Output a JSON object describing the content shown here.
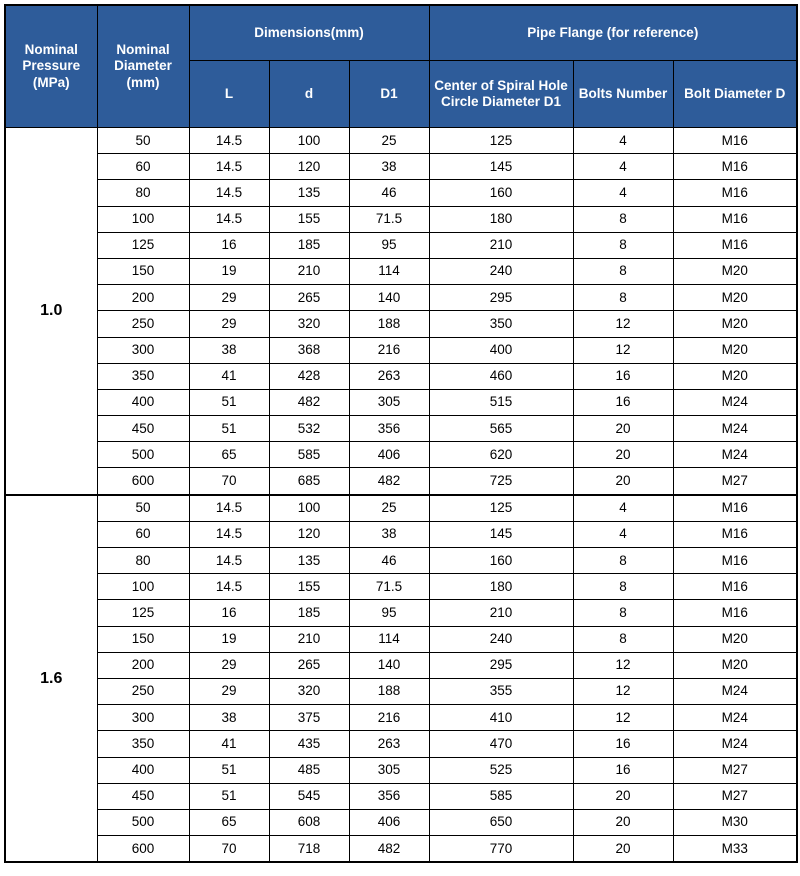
{
  "header": {
    "nominal_pressure": "Nominal Pressure (MPa)",
    "nominal_diameter": "Nominal Diameter (mm)",
    "dimensions": "Dimensions(mm)",
    "flange": "Pipe Flange (for reference)",
    "L": "L",
    "d": "d",
    "D1": "D1",
    "spiral": "Center of Spiral Hole Circle Diameter D1",
    "bolts_num": "Bolts Number",
    "bolt_dia": "Bolt Diameter D"
  },
  "groups": [
    {
      "pressure": "1.0",
      "rows": [
        {
          "nd": "50",
          "L": "14.5",
          "d": "100",
          "D1": "25",
          "sp": "125",
          "bn": "4",
          "bd": "M16"
        },
        {
          "nd": "60",
          "L": "14.5",
          "d": "120",
          "D1": "38",
          "sp": "145",
          "bn": "4",
          "bd": "M16"
        },
        {
          "nd": "80",
          "L": "14.5",
          "d": "135",
          "D1": "46",
          "sp": "160",
          "bn": "4",
          "bd": "M16"
        },
        {
          "nd": "100",
          "L": "14.5",
          "d": "155",
          "D1": "71.5",
          "sp": "180",
          "bn": "8",
          "bd": "M16"
        },
        {
          "nd": "125",
          "L": "16",
          "d": "185",
          "D1": "95",
          "sp": "210",
          "bn": "8",
          "bd": "M16"
        },
        {
          "nd": "150",
          "L": "19",
          "d": "210",
          "D1": "114",
          "sp": "240",
          "bn": "8",
          "bd": "M20"
        },
        {
          "nd": "200",
          "L": "29",
          "d": "265",
          "D1": "140",
          "sp": "295",
          "bn": "8",
          "bd": "M20"
        },
        {
          "nd": "250",
          "L": "29",
          "d": "320",
          "D1": "188",
          "sp": "350",
          "bn": "12",
          "bd": "M20"
        },
        {
          "nd": "300",
          "L": "38",
          "d": "368",
          "D1": "216",
          "sp": "400",
          "bn": "12",
          "bd": "M20"
        },
        {
          "nd": "350",
          "L": "41",
          "d": "428",
          "D1": "263",
          "sp": "460",
          "bn": "16",
          "bd": "M20"
        },
        {
          "nd": "400",
          "L": "51",
          "d": "482",
          "D1": "305",
          "sp": "515",
          "bn": "16",
          "bd": "M24"
        },
        {
          "nd": "450",
          "L": "51",
          "d": "532",
          "D1": "356",
          "sp": "565",
          "bn": "20",
          "bd": "M24"
        },
        {
          "nd": "500",
          "L": "65",
          "d": "585",
          "D1": "406",
          "sp": "620",
          "bn": "20",
          "bd": "M24"
        },
        {
          "nd": "600",
          "L": "70",
          "d": "685",
          "D1": "482",
          "sp": "725",
          "bn": "20",
          "bd": "M27"
        }
      ]
    },
    {
      "pressure": "1.6",
      "rows": [
        {
          "nd": "50",
          "L": "14.5",
          "d": "100",
          "D1": "25",
          "sp": "125",
          "bn": "4",
          "bd": "M16"
        },
        {
          "nd": "60",
          "L": "14.5",
          "d": "120",
          "D1": "38",
          "sp": "145",
          "bn": "4",
          "bd": "M16"
        },
        {
          "nd": "80",
          "L": "14.5",
          "d": "135",
          "D1": "46",
          "sp": "160",
          "bn": "8",
          "bd": "M16"
        },
        {
          "nd": "100",
          "L": "14.5",
          "d": "155",
          "D1": "71.5",
          "sp": "180",
          "bn": "8",
          "bd": "M16"
        },
        {
          "nd": "125",
          "L": "16",
          "d": "185",
          "D1": "95",
          "sp": "210",
          "bn": "8",
          "bd": "M16"
        },
        {
          "nd": "150",
          "L": "19",
          "d": "210",
          "D1": "114",
          "sp": "240",
          "bn": "8",
          "bd": "M20"
        },
        {
          "nd": "200",
          "L": "29",
          "d": "265",
          "D1": "140",
          "sp": "295",
          "bn": "12",
          "bd": "M20"
        },
        {
          "nd": "250",
          "L": "29",
          "d": "320",
          "D1": "188",
          "sp": "355",
          "bn": "12",
          "bd": "M24"
        },
        {
          "nd": "300",
          "L": "38",
          "d": "375",
          "D1": "216",
          "sp": "410",
          "bn": "12",
          "bd": "M24"
        },
        {
          "nd": "350",
          "L": "41",
          "d": "435",
          "D1": "263",
          "sp": "470",
          "bn": "16",
          "bd": "M24"
        },
        {
          "nd": "400",
          "L": "51",
          "d": "485",
          "D1": "305",
          "sp": "525",
          "bn": "16",
          "bd": "M27"
        },
        {
          "nd": "450",
          "L": "51",
          "d": "545",
          "D1": "356",
          "sp": "585",
          "bn": "20",
          "bd": "M27"
        },
        {
          "nd": "500",
          "L": "65",
          "d": "608",
          "D1": "406",
          "sp": "650",
          "bn": "20",
          "bd": "M30"
        },
        {
          "nd": "600",
          "L": "70",
          "d": "718",
          "D1": "482",
          "sp": "770",
          "bn": "20",
          "bd": "M33"
        }
      ]
    }
  ],
  "style": {
    "header_bg": "#2e5c9a",
    "header_fg": "#ffffff",
    "border_color": "#000000",
    "font_size_body": 13.5,
    "font_size_group_label": 16,
    "row_height": 25.2
  }
}
